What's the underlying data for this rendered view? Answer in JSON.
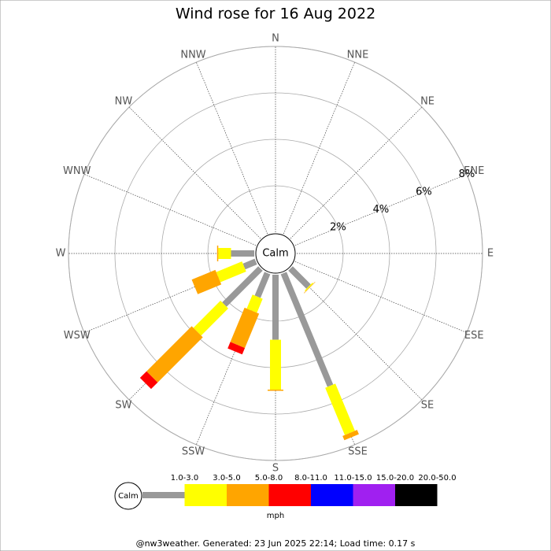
{
  "chart_data": {
    "type": "windrose",
    "title": "Wind rose for 16 Aug 2022",
    "calm_label": "Calm",
    "directions": [
      "N",
      "NNE",
      "NE",
      "ENE",
      "E",
      "ESE",
      "SE",
      "SSE",
      "S",
      "SSW",
      "SW",
      "WSW",
      "W",
      "WNW",
      "NW",
      "NNW"
    ],
    "rlim": [
      0,
      8
    ],
    "rticks": [
      {
        "value": 2,
        "label": "2%"
      },
      {
        "value": 4,
        "label": "4%"
      },
      {
        "value": 6,
        "label": "6%"
      },
      {
        "value": 8,
        "label": "8%"
      }
    ],
    "series": [
      {
        "name": "1.0-3.0",
        "color": "#999999",
        "values": [
          0,
          0,
          0,
          0,
          0,
          0,
          1.1,
          5.25,
          2.8,
          1.1,
          2.2,
          0.55,
          1.0,
          0,
          0,
          0
        ]
      },
      {
        "name": "3.0-5.0",
        "color": "#ffff00",
        "values": [
          0,
          0,
          0,
          0,
          0,
          0,
          0.05,
          2.2,
          2.15,
          0.65,
          1.65,
          1.2,
          0.55,
          0,
          0,
          0
        ]
      },
      {
        "name": "5.0-8.0",
        "color": "#ffa500",
        "values": [
          0,
          0,
          0,
          0,
          0,
          0,
          0.02,
          0.2,
          0.05,
          1.6,
          2.75,
          1.1,
          0.05,
          0,
          0,
          0
        ]
      },
      {
        "name": "8.0-11.0",
        "color": "#ff0000",
        "values": [
          0,
          0,
          0,
          0,
          0,
          0,
          0,
          0,
          0,
          0.3,
          0.4,
          0,
          0,
          0,
          0,
          0
        ]
      },
      {
        "name": "11.0-15.0",
        "color": "#0000ff",
        "values": [
          0,
          0,
          0,
          0,
          0,
          0,
          0,
          0,
          0,
          0,
          0,
          0,
          0,
          0,
          0,
          0
        ]
      },
      {
        "name": "15.0-20.0",
        "color": "#a020f0",
        "values": [
          0,
          0,
          0,
          0,
          0,
          0,
          0,
          0,
          0,
          0,
          0,
          0,
          0,
          0,
          0,
          0
        ]
      },
      {
        "name": "20.0-50.0",
        "color": "#000000",
        "values": [
          0,
          0,
          0,
          0,
          0,
          0,
          0,
          0,
          0,
          0,
          0,
          0,
          0,
          0,
          0,
          0
        ]
      }
    ],
    "legend_unit": "mph",
    "footer": "@nw3weather.  Generated: 23 Jun 2025 22:14; Load time: 0.17 s"
  }
}
